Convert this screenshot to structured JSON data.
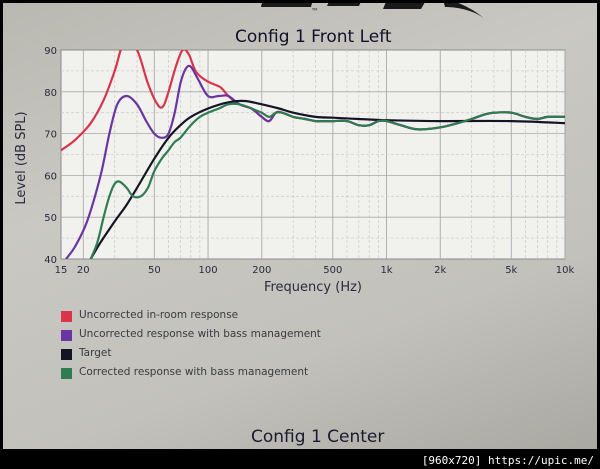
{
  "logo": {
    "trademark": "™"
  },
  "chart_data": {
    "type": "line",
    "title": "Config 1 Front Left",
    "xlabel": "Frequency (Hz)",
    "ylabel": "Level (dB SPL)",
    "xscale": "log",
    "xlim": [
      15,
      10000
    ],
    "ylim": [
      40,
      90
    ],
    "xticks": [
      {
        "value": 15,
        "label": "15"
      },
      {
        "value": 20,
        "label": "20"
      },
      {
        "value": 50,
        "label": "50"
      },
      {
        "value": 100,
        "label": "100"
      },
      {
        "value": 200,
        "label": "200"
      },
      {
        "value": 500,
        "label": "500"
      },
      {
        "value": 1000,
        "label": "1k"
      },
      {
        "value": 2000,
        "label": "2k"
      },
      {
        "value": 5000,
        "label": "5k"
      },
      {
        "value": 10000,
        "label": "10k"
      }
    ],
    "yticks": [
      40,
      50,
      60,
      70,
      80,
      90
    ],
    "grid": true,
    "series": [
      {
        "name": "Uncorrected in-room response",
        "color": "#d8344a",
        "points": [
          [
            15,
            66
          ],
          [
            18,
            68.5
          ],
          [
            22,
            72.5
          ],
          [
            26,
            78
          ],
          [
            30,
            85
          ],
          [
            34,
            92
          ],
          [
            40,
            90
          ],
          [
            46,
            82
          ],
          [
            52,
            77
          ],
          [
            56,
            76.5
          ],
          [
            60,
            80
          ],
          [
            66,
            86
          ],
          [
            72,
            90
          ],
          [
            78,
            89
          ],
          [
            85,
            85
          ],
          [
            95,
            83
          ],
          [
            105,
            82
          ],
          [
            118,
            81
          ],
          [
            130,
            79
          ],
          [
            150,
            77
          ],
          [
            175,
            76
          ],
          [
            200,
            74
          ],
          [
            220,
            73
          ],
          [
            240,
            75
          ],
          [
            260,
            75
          ],
          [
            300,
            74
          ],
          [
            350,
            73.5
          ],
          [
            400,
            73
          ],
          [
            450,
            73
          ],
          [
            500,
            73
          ],
          [
            600,
            73
          ],
          [
            700,
            72
          ],
          [
            800,
            72
          ],
          [
            900,
            73
          ],
          [
            1000,
            73
          ],
          [
            1200,
            72
          ],
          [
            1500,
            71
          ],
          [
            2000,
            71.5
          ],
          [
            2500,
            72.5
          ],
          [
            3000,
            73.5
          ],
          [
            3500,
            74.5
          ],
          [
            4000,
            75
          ],
          [
            5000,
            75
          ],
          [
            6000,
            74
          ],
          [
            7000,
            73.5
          ],
          [
            8000,
            74
          ],
          [
            10000,
            74
          ]
        ]
      },
      {
        "name": "Uncorrected response with bass management",
        "color": "#6a35a2",
        "points": [
          [
            16,
            40
          ],
          [
            18,
            43
          ],
          [
            21,
            49
          ],
          [
            25,
            60
          ],
          [
            28,
            70
          ],
          [
            31,
            77
          ],
          [
            35,
            79
          ],
          [
            40,
            77
          ],
          [
            45,
            73
          ],
          [
            50,
            70
          ],
          [
            55,
            69
          ],
          [
            60,
            70
          ],
          [
            65,
            75
          ],
          [
            70,
            82
          ],
          [
            75,
            85.5
          ],
          [
            80,
            86
          ],
          [
            88,
            83
          ],
          [
            100,
            79
          ],
          [
            115,
            79
          ],
          [
            130,
            79
          ],
          [
            150,
            77
          ],
          [
            175,
            76
          ],
          [
            200,
            74
          ],
          [
            220,
            73
          ],
          [
            240,
            75
          ],
          [
            260,
            75
          ],
          [
            300,
            74
          ],
          [
            350,
            73.5
          ],
          [
            400,
            73
          ],
          [
            450,
            73
          ],
          [
            500,
            73
          ],
          [
            600,
            73
          ],
          [
            700,
            72
          ],
          [
            800,
            72
          ],
          [
            900,
            73
          ],
          [
            1000,
            73
          ],
          [
            1200,
            72
          ],
          [
            1500,
            71
          ],
          [
            2000,
            71.5
          ],
          [
            2500,
            72.5
          ],
          [
            3000,
            73.5
          ],
          [
            3500,
            74.5
          ],
          [
            4000,
            75
          ],
          [
            5000,
            75
          ],
          [
            6000,
            74
          ],
          [
            7000,
            73.5
          ],
          [
            8000,
            74
          ],
          [
            10000,
            74
          ]
        ]
      },
      {
        "name": "Target",
        "color": "#141426",
        "points": [
          [
            22,
            40
          ],
          [
            25,
            44
          ],
          [
            30,
            49
          ],
          [
            35,
            53
          ],
          [
            40,
            57
          ],
          [
            50,
            64
          ],
          [
            60,
            69
          ],
          [
            70,
            72
          ],
          [
            80,
            74
          ],
          [
            100,
            76
          ],
          [
            130,
            77.5
          ],
          [
            160,
            77.8
          ],
          [
            200,
            77
          ],
          [
            250,
            76
          ],
          [
            300,
            75
          ],
          [
            400,
            74
          ],
          [
            500,
            73.8
          ],
          [
            700,
            73.5
          ],
          [
            1000,
            73.2
          ],
          [
            2000,
            73
          ],
          [
            5000,
            73
          ],
          [
            10000,
            72.5
          ]
        ]
      },
      {
        "name": "Corrected response with bass management",
        "color": "#2f7c52",
        "points": [
          [
            22,
            40
          ],
          [
            24,
            44
          ],
          [
            26,
            50
          ],
          [
            28,
            55
          ],
          [
            30,
            58
          ],
          [
            32,
            58.5
          ],
          [
            35,
            57
          ],
          [
            38,
            55
          ],
          [
            42,
            55
          ],
          [
            46,
            57
          ],
          [
            50,
            61
          ],
          [
            55,
            64
          ],
          [
            60,
            66
          ],
          [
            65,
            68
          ],
          [
            70,
            69
          ],
          [
            80,
            72
          ],
          [
            90,
            74
          ],
          [
            100,
            75
          ],
          [
            115,
            76
          ],
          [
            130,
            77
          ],
          [
            150,
            77
          ],
          [
            175,
            76
          ],
          [
            200,
            75
          ],
          [
            220,
            74
          ],
          [
            240,
            75
          ],
          [
            260,
            75
          ],
          [
            300,
            74
          ],
          [
            350,
            73.5
          ],
          [
            400,
            73
          ],
          [
            450,
            73
          ],
          [
            500,
            73
          ],
          [
            600,
            73
          ],
          [
            700,
            72
          ],
          [
            800,
            72
          ],
          [
            900,
            73
          ],
          [
            1000,
            73
          ],
          [
            1200,
            72
          ],
          [
            1500,
            71
          ],
          [
            2000,
            71.5
          ],
          [
            2500,
            72.5
          ],
          [
            3000,
            73.5
          ],
          [
            3500,
            74.5
          ],
          [
            4000,
            75
          ],
          [
            5000,
            75
          ],
          [
            6000,
            74
          ],
          [
            7000,
            73.5
          ],
          [
            8000,
            74
          ],
          [
            10000,
            74
          ]
        ]
      }
    ]
  },
  "legend": {
    "items": [
      {
        "label": "Uncorrected in-room response",
        "color": "#d8344a"
      },
      {
        "label": "Uncorrected response with bass management",
        "color": "#6a35a2"
      },
      {
        "label": "Target",
        "color": "#141426"
      },
      {
        "label": "Corrected response with bass management",
        "color": "#2f7c52"
      }
    ]
  },
  "next_chart": {
    "title": "Config 1 Center"
  },
  "watermark": {
    "text": "[960x720] https://upic.me/"
  }
}
